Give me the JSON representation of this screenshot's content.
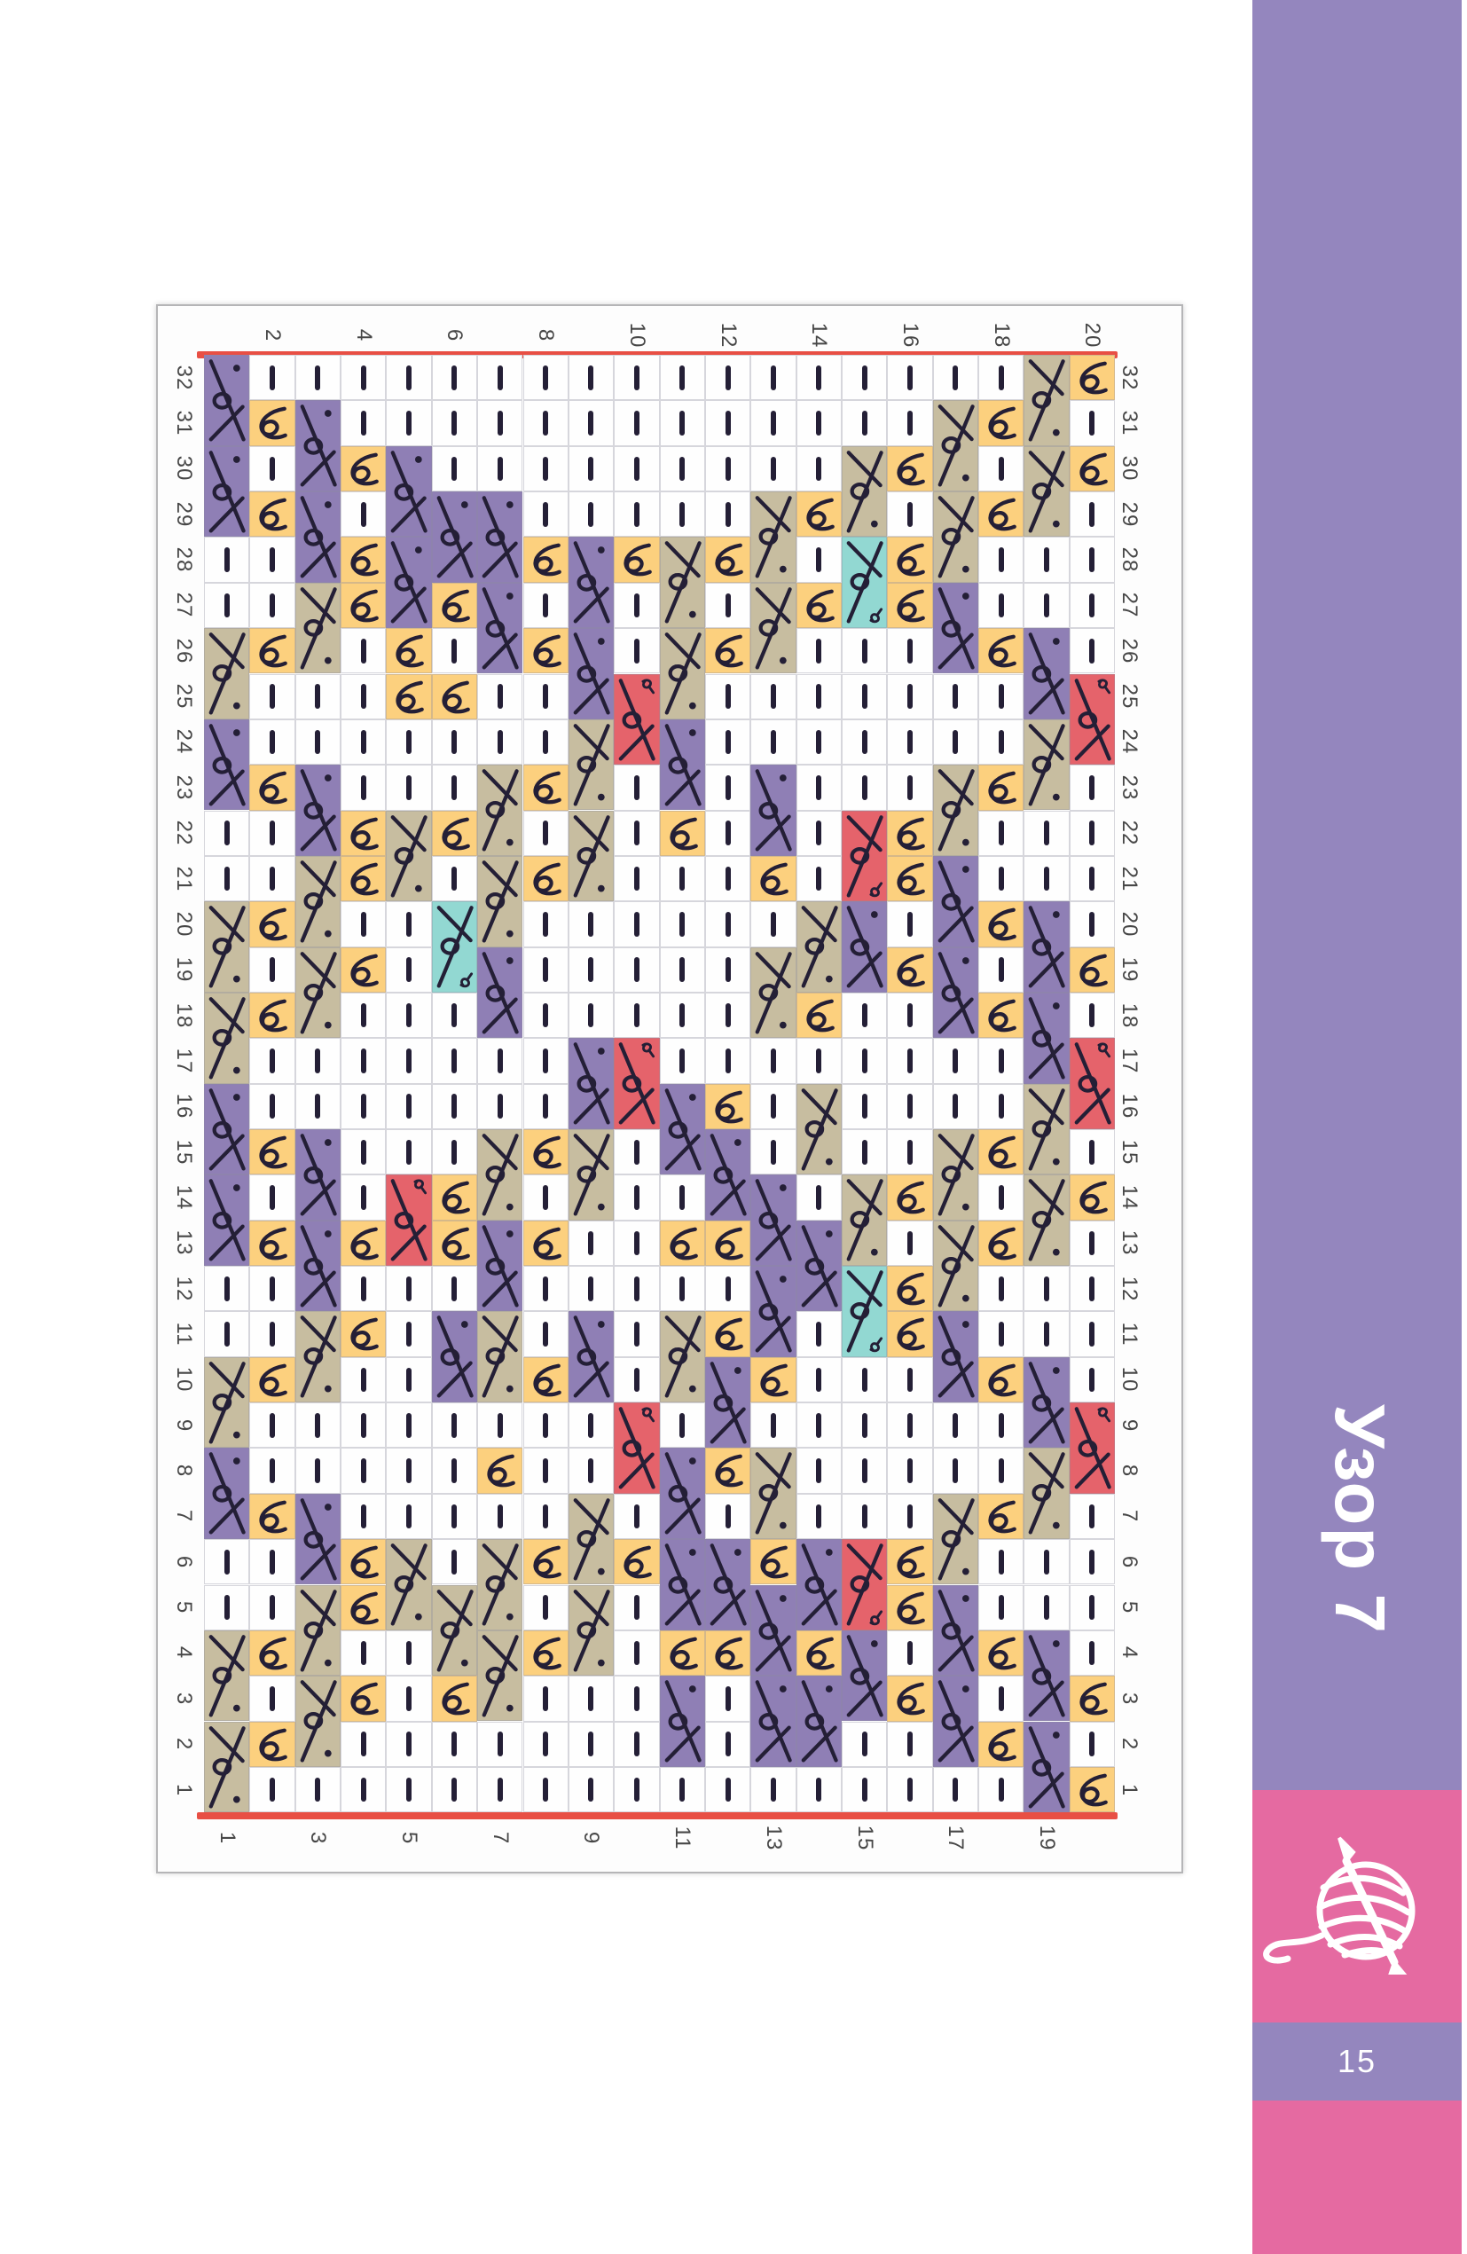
{
  "page": {
    "number": "15",
    "sidebar_title": "Узор 7"
  },
  "chart": {
    "rows": 32,
    "cols": 20,
    "top_labels": [
      "2",
      "4",
      "6",
      "8",
      "10",
      "12",
      "14",
      "16",
      "18",
      "20"
    ],
    "bottom_labels": [
      "1",
      "3",
      "5",
      "7",
      "9",
      "11",
      "13",
      "15",
      "17",
      "19"
    ],
    "side_labels": [
      "32",
      "31",
      "30",
      "29",
      "28",
      "27",
      "26",
      "25",
      "24",
      "23",
      "22",
      "21",
      "20",
      "19",
      "18",
      "17",
      "16",
      "15",
      "14",
      "13",
      "12",
      "11",
      "10",
      "9",
      "8",
      "7",
      "6",
      "5",
      "4",
      "3",
      "2",
      "1"
    ],
    "legend": {
      "b": "purl-dash on white",
      "y": "loop stitch on yellow",
      "p": "2-cell crossed stitch on purple, dot top",
      "t": "2-cell crossed stitch on tan, dot bottom",
      "r": "2-cell crossed stitch on red, curl top",
      "R": "2-cell crossed stitch on red, curl bottom",
      "c": "2-cell crossed stitch on cyan, curl bottom"
    },
    "grid_columns": [
      "ppbbtpbbttppbbtpbbtt",
      "bybybbybbybbybybbybybbybbybbybyb",
      "bpptbbpttbbpptbbpttb",
      "bbybyybbbbyybybbbbbybybbbbyybybb",
      "bbppyybbtbbbbbbrbbbbbbtbbbb",
      "bbbpybybbybcbbbbyybpbbbbtybb",
      "bbbppbbttpbbtptbybttbb",
      "bbbbybybbybybbbbbybybbybbbybybbb",
      "bbbbppttbbbptbbpbbttbbb",
      "bbbbybbrbbbbbbrbbbbbbrbybbbbb",
      "bbbbttpybbbbbpbybtbppypb",
      "bbbbybybbbbbbbbbypybypybpybbb",
      "bbbttbbpybtbbbppybtyppb",
      "bbbybybbbbbbtybtbpbbbbbpypb",
      "bbtcbbbbRpbbbbtcbbbbRpbb",
      "bbybyybbbbyybybbbbybyybbbbyybybb",
      "bttpbbtppbbttpbbtppb",
      "bybybbybbybbybybbybybbybbybbybyb",
      "ttbbptbbppttbbptbbpp",
      "ybybbbbrbbbbybrbybbbbrbbbbyby"
    ]
  },
  "colors": {
    "cell_white": "#fefefe",
    "cell_yellow": "#fcd07e",
    "cell_tan": "#c7bda0",
    "cell_purple": "#8f7fb5",
    "cell_red": "#e5636b",
    "cell_cyan": "#92d8d2",
    "symbol": "#241f36",
    "red_line": "#e84f44",
    "label_text": "#474747",
    "sidebar_purple": "#9486be",
    "pink": "#e56aa1",
    "white_text": "#ffffff"
  },
  "icons": {
    "footer": "yarn-ball-icon"
  }
}
